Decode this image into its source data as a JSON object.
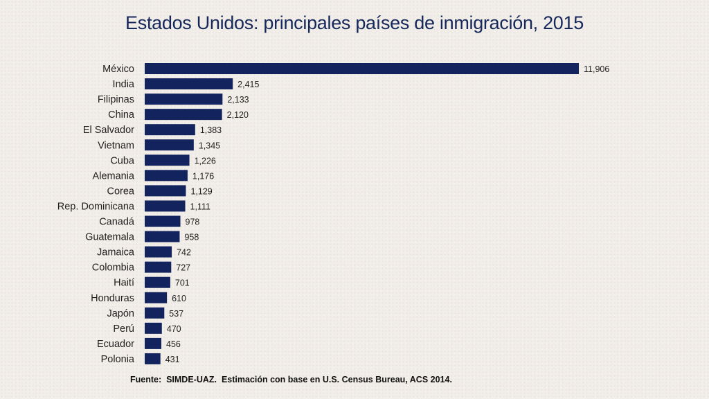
{
  "title": "Estados Unidos: principales países de inmigración, 2015",
  "source": "Fuente:  SIMDE-UAZ.  Estimación con base en U.S. Census Bureau, ACS 2014.",
  "colors": {
    "bar": "#13235e",
    "title": "#16275a",
    "background": "#f1ede8"
  },
  "chart_data": {
    "type": "bar",
    "orientation": "horizontal",
    "title": "Estados Unidos: principales países de inmigración, 2015",
    "xlabel": "",
    "ylabel": "",
    "xlim": [
      0,
      11906
    ],
    "grid": false,
    "legend": "none",
    "categories": [
      "México",
      "India",
      "Filipinas",
      "China",
      "El Salvador",
      "Vietnam",
      "Cuba",
      "Alemania",
      "Corea",
      "Rep. Dominicana",
      "Canadá",
      "Guatemala",
      "Jamaica",
      "Colombia",
      "Haití",
      "Honduras",
      "Japón",
      "Perú",
      "Ecuador",
      "Polonia"
    ],
    "values": [
      11906,
      2415,
      2133,
      2120,
      1383,
      1345,
      1226,
      1176,
      1129,
      1111,
      978,
      958,
      742,
      727,
      701,
      610,
      537,
      470,
      456,
      431
    ],
    "value_labels": [
      "11,906",
      "2,415",
      "2,133",
      "2,120",
      "1,383",
      "1,345",
      "1,226",
      "1,176",
      "1,129",
      "1,111",
      "978",
      "958",
      "742",
      "727",
      "701",
      "610",
      "537",
      "470",
      "456",
      "431"
    ]
  }
}
